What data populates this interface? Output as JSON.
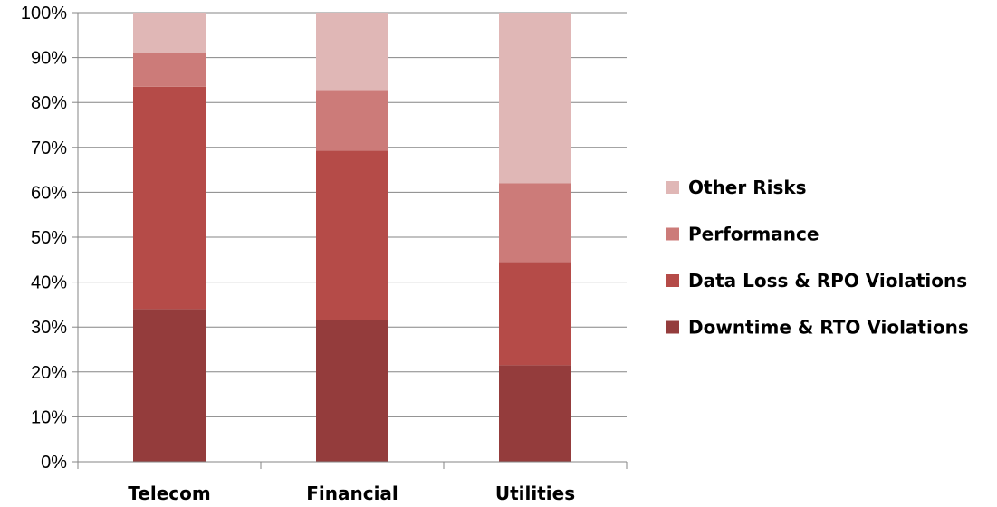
{
  "chart_data": {
    "type": "bar",
    "stacked": true,
    "percent_stacked": true,
    "categories": [
      "Telecom",
      "Financial",
      "Utilities"
    ],
    "series": [
      {
        "name": "Downtime & RTO Violations",
        "values": [
          34,
          31.5,
          21.5
        ],
        "color": "#943C3C"
      },
      {
        "name": "Data Loss & RPO Violations",
        "values": [
          49.5,
          37.8,
          23
        ],
        "color": "#B54B48"
      },
      {
        "name": "Performance",
        "values": [
          7.5,
          13.5,
          17.5
        ],
        "color": "#CC7B79"
      },
      {
        "name": "Other Risks",
        "values": [
          9,
          17.2,
          38
        ],
        "color": "#E0B7B6"
      }
    ],
    "yticks": [
      "0%",
      "10%",
      "20%",
      "30%",
      "40%",
      "50%",
      "60%",
      "70%",
      "80%",
      "90%",
      "100%"
    ],
    "ylim": [
      0,
      100
    ],
    "grid": true,
    "legend_position": "right",
    "legend_order": [
      "Other Risks",
      "Performance",
      "Data Loss & RPO Violations",
      "Downtime & RTO Violations"
    ],
    "title": "",
    "xlabel": "",
    "ylabel": ""
  }
}
